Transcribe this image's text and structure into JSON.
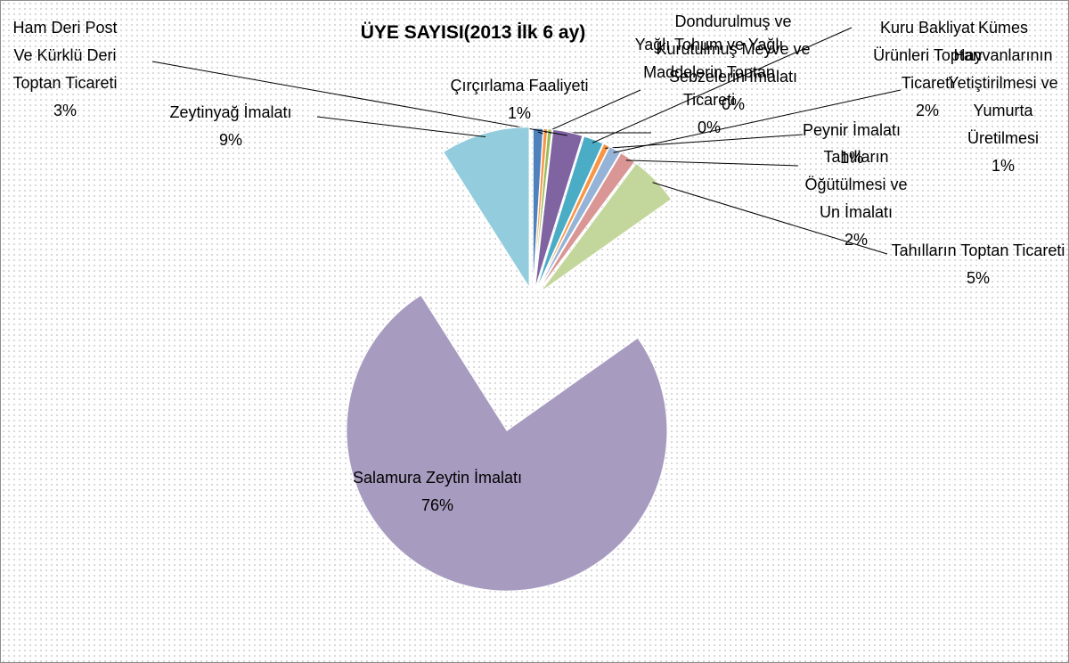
{
  "chart_data": {
    "type": "pie",
    "title": "ÜYE SAYISI(2013 İlk 6 ay)",
    "categories": [
      "Çırçırlama Faaliyeti",
      "Yağlı Tohum ve Yağlı Maddelerin Toptan Ticareti",
      "Dondurulmuş ve Kurutulmuş Meyve ve Sebzelerin İmalatı",
      "Ham Deri Post Ve Kürklü Deri Toptan Ticareti",
      "Kuru Bakliyat Ürünleri Toptan Ticareti",
      "Peynir İmalatı",
      "Kümes Hayvanlarının Yetiştirilmesi ve Yumurta Üretilmesi",
      "Tahılların Öğütülmesi ve Un İmalatı",
      "Tahılların Toptan Ticareti",
      "Salamura Zeytin İmalatı",
      "Zeytinyağ İmalatı"
    ],
    "values": [
      1,
      0.4,
      0.4,
      3,
      2,
      0.6,
      1.2,
      1.6,
      5,
      75.8,
      9
    ],
    "value_labels": [
      "1%",
      "0%",
      "0%",
      "3%",
      "2%",
      "1%",
      "1%",
      "2%",
      "5%",
      "76%",
      "9%"
    ],
    "colors": [
      "#4f81bd",
      "#f79646",
      "#9bbb59",
      "#8064a2",
      "#4bacc6",
      "#f79646",
      "#95b3d7",
      "#d99694",
      "#c3d69b",
      "#a89bc0",
      "#93cddd"
    ]
  }
}
